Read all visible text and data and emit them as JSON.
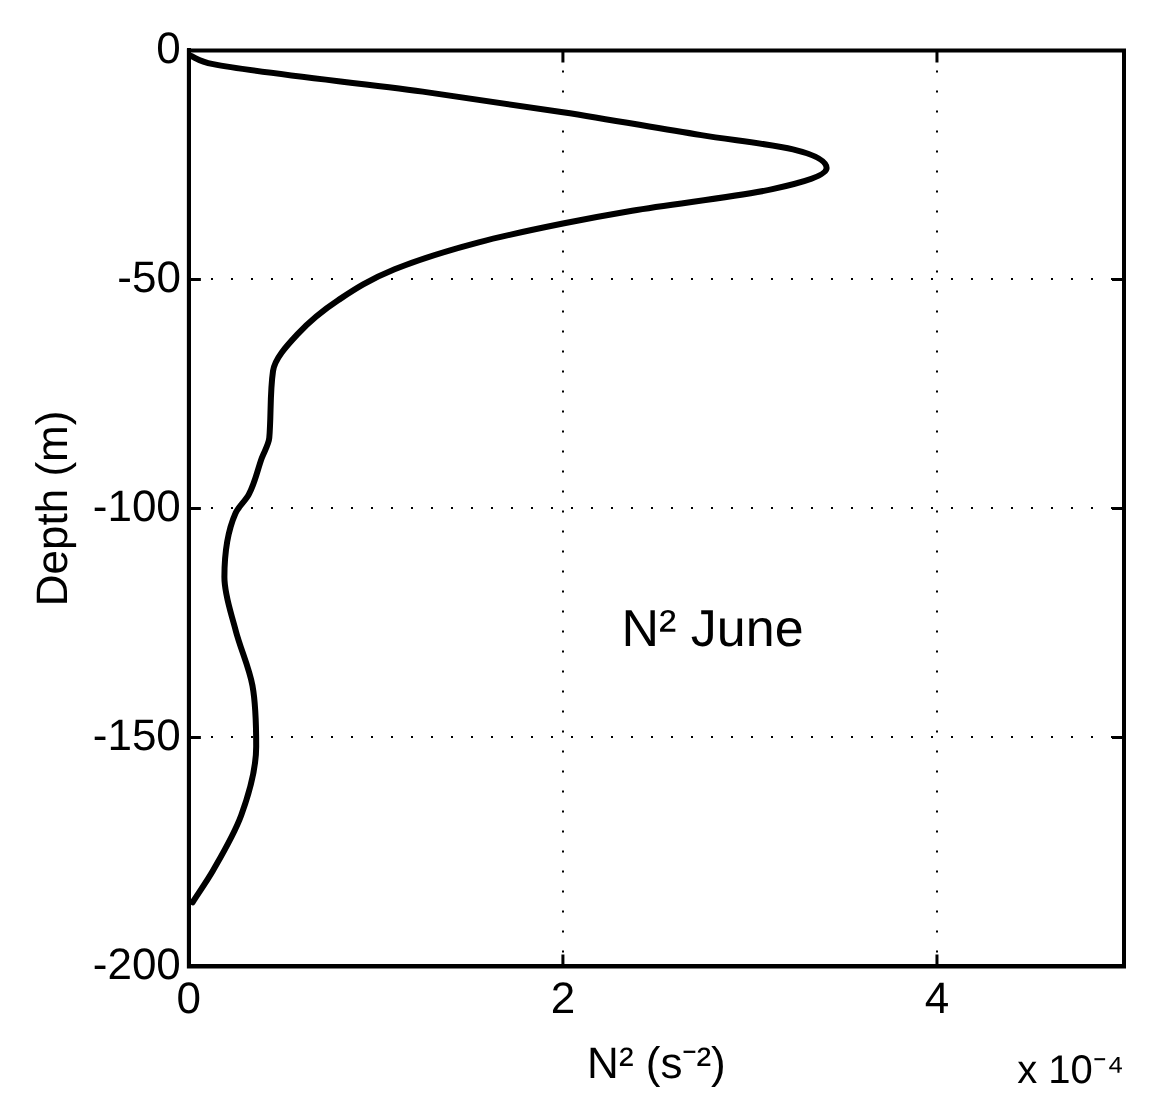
{
  "chart_data": {
    "type": "line",
    "xlabel": "N² (s⁻²)",
    "ylabel": "Depth (m)",
    "series": [
      {
        "color": "#000000",
        "x": [
          0,
          0.13,
          1.25,
          2.0,
          2.74,
          3.23,
          3.41,
          3.12,
          2.37,
          2.0,
          1.55,
          1.1,
          0.8,
          0.58,
          0.45,
          0.43,
          0.39,
          0.32,
          0.25,
          0.19,
          0.25,
          0.34,
          0.36,
          0.28,
          0.13,
          0.02
        ],
        "values": [
          -1,
          -3,
          -9,
          -13.5,
          -18.5,
          -21.6,
          -25.7,
          -30.3,
          -35,
          -37.8,
          -41.9,
          -47.8,
          -54.5,
          -62,
          -70,
          -84.6,
          -89,
          -97,
          -101,
          -115,
          -126.6,
          -138.7,
          -152,
          -167,
          -179,
          -186
        ]
      }
    ],
    "xlim": [
      0,
      5
    ],
    "xticks": [
      0,
      2,
      4
    ],
    "ylim": [
      -200,
      0
    ],
    "yticks": [
      -200,
      -150,
      -100,
      -50,
      0
    ],
    "annotations": [
      "N² June",
      "x 10⁻⁴"
    ],
    "grid": true,
    "legend": false,
    "marker": "none",
    "line_style": "solid"
  }
}
